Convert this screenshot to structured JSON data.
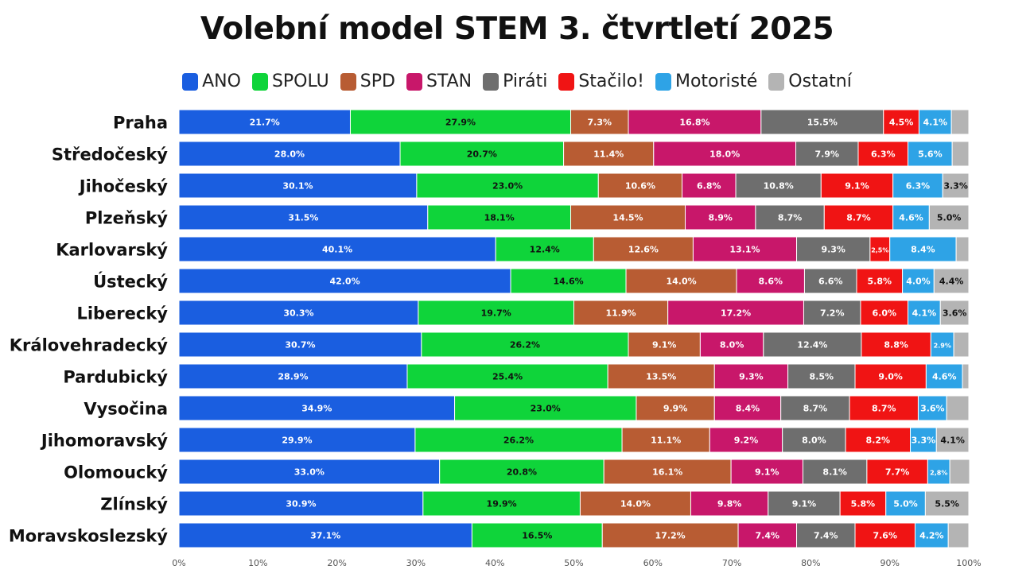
{
  "chart_data": {
    "type": "bar",
    "orientation": "horizontal",
    "stacked": true,
    "title": "Volební model STEM 3. čtvrtletí 2025",
    "categories": [
      "Praha",
      "Středočeský",
      "Jihočeský",
      "Plzeňský",
      "Karlovarský",
      "Ústecký",
      "Liberecký",
      "Královehradecký",
      "Pardubický",
      "Vysočina",
      "Jihomoravský",
      "Olomoucký",
      "Zlínský",
      "Moravskoslezský"
    ],
    "xlim": [
      0,
      100
    ],
    "xticks": [
      0,
      10,
      20,
      30,
      40,
      50,
      60,
      70,
      80,
      90,
      100
    ],
    "xtick_labels": [
      "0%",
      "10%",
      "20%",
      "30%",
      "40%",
      "50%",
      "60%",
      "70%",
      "80%",
      "90%",
      "100%"
    ],
    "legend_position": "top",
    "grid": false,
    "series": [
      {
        "name": "ANO",
        "color": "#1a5ee0",
        "values": [
          21.7,
          28.0,
          30.1,
          31.5,
          40.1,
          42.0,
          30.3,
          30.7,
          28.9,
          34.9,
          29.9,
          33.0,
          30.9,
          37.1
        ],
        "labels": [
          "21.7%",
          "28.0%",
          "30.1%",
          "31.5%",
          "40.1%",
          "42.0%",
          "30.3%",
          "30.7%",
          "28.9%",
          "34.9%",
          "29.9%",
          "33.0%",
          "30.9%",
          "37.1%"
        ]
      },
      {
        "name": "SPOLU",
        "color": "#0fd43a",
        "values": [
          27.9,
          20.7,
          23.0,
          18.1,
          12.4,
          14.6,
          19.7,
          26.2,
          25.4,
          23.0,
          26.2,
          20.8,
          19.9,
          16.5
        ],
        "labels": [
          "27.9%",
          "20.7%",
          "23.0%",
          "18.1%",
          "12.4%",
          "14.6%",
          "19.7%",
          "26.2%",
          "25.4%",
          "23.0%",
          "26.2%",
          "20.8%",
          "19.9%",
          "16.5%"
        ]
      },
      {
        "name": "SPD",
        "color": "#b85c33",
        "values": [
          7.3,
          11.4,
          10.6,
          14.5,
          12.6,
          14.0,
          11.9,
          9.1,
          13.5,
          9.9,
          11.1,
          16.1,
          14.0,
          17.2
        ],
        "labels": [
          "7.3%",
          "11.4%",
          "10.6%",
          "14.5%",
          "12.6%",
          "14.0%",
          "11.9%",
          "9.1%",
          "13.5%",
          "9.9%",
          "11.1%",
          "16.1%",
          "14.0%",
          "17.2%"
        ]
      },
      {
        "name": "STAN",
        "color": "#c8176a",
        "values": [
          16.8,
          18.0,
          6.8,
          8.9,
          13.1,
          8.6,
          17.2,
          8.0,
          9.3,
          8.4,
          9.2,
          9.1,
          9.8,
          7.4
        ],
        "labels": [
          "16.8%",
          "18.0%",
          "6.8%",
          "8.9%",
          "13.1%",
          "8.6%",
          "17.2%",
          "8.0%",
          "9.3%",
          "8.4%",
          "9.2%",
          "9.1%",
          "9.8%",
          "7.4%"
        ]
      },
      {
        "name": "Piráti",
        "color": "#6e6e6e",
        "values": [
          15.5,
          7.9,
          10.8,
          8.7,
          9.3,
          6.6,
          7.2,
          12.4,
          8.5,
          8.7,
          8.0,
          8.1,
          9.1,
          7.4
        ],
        "labels": [
          "15.5%",
          "7.9%",
          "10.8%",
          "8.7%",
          "9.3%",
          "6.6%",
          "7.2%",
          "12.4%",
          "8.5%",
          "8.7%",
          "8.0%",
          "8.1%",
          "9.1%",
          "7.4%"
        ]
      },
      {
        "name": "Stačilo!",
        "color": "#f01414",
        "values": [
          4.5,
          6.3,
          9.1,
          8.7,
          2.5,
          5.8,
          6.0,
          8.8,
          9.0,
          8.7,
          8.2,
          7.7,
          5.8,
          7.6
        ],
        "labels": [
          "4.5%",
          "6.3%",
          "9.1%",
          "8.7%",
          "2,5%",
          "5.8%",
          "6.0%",
          "8.8%",
          "9.0%",
          "8.7%",
          "8.2%",
          "7.7%",
          "5.8%",
          "7.6%"
        ]
      },
      {
        "name": "Motoristé",
        "color": "#2ea3e6",
        "values": [
          4.1,
          5.6,
          6.3,
          4.6,
          8.4,
          4.0,
          4.1,
          2.9,
          4.6,
          3.6,
          3.3,
          2.8,
          5.0,
          4.2
        ],
        "labels": [
          "4.1%",
          "5.6%",
          "6.3%",
          "4.6%",
          "8.4%",
          "4.0%",
          "4.1%",
          "2.9%",
          "4.6%",
          "3.6%",
          "3.3%",
          "2,8%",
          "5.0%",
          "4.2%"
        ]
      },
      {
        "name": "Ostatní",
        "color": "#b4b4b4",
        "values": [
          2.2,
          2.1,
          3.3,
          5.0,
          1.6,
          4.4,
          3.6,
          1.9,
          0.8,
          2.8,
          4.1,
          2.5,
          5.5,
          2.6
        ],
        "labels": [
          "",
          "",
          "3.3%",
          "5.0%",
          "",
          "4.4%",
          "3.6%",
          "",
          "",
          "",
          "4.1%",
          "",
          "5.5%",
          ""
        ]
      }
    ]
  }
}
